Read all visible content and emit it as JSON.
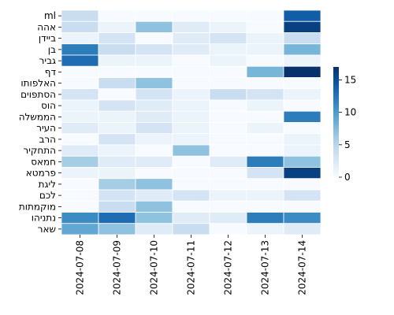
{
  "chart_data": {
    "type": "heatmap",
    "title": "",
    "xlabel": "",
    "ylabel": "",
    "x_categories": [
      "2024-07-08",
      "2024-07-09",
      "2024-07-10",
      "2024-07-11",
      "2024-07-12",
      "2024-07-13",
      "2024-07-14"
    ],
    "y_categories": [
      "ml",
      "אהה",
      "ביידן",
      "בן",
      "גביר",
      "דף",
      "האלפותו",
      "הסתפוים",
      "הוס",
      "הממשלה",
      "העיר",
      "הרב",
      "התחקיר",
      "חמאס",
      "פרמטא",
      "ליגת",
      "לכם",
      "מוקמתות",
      "נתניהו",
      "שאר"
    ],
    "values": [
      [
        4,
        0,
        0,
        0,
        0,
        0,
        14
      ],
      [
        4,
        1,
        7,
        2,
        1,
        0,
        16
      ],
      [
        1,
        3,
        0,
        2,
        3,
        1,
        4
      ],
      [
        12,
        4,
        3,
        2,
        1,
        1,
        8
      ],
      [
        13,
        1,
        1,
        0,
        1,
        0,
        1
      ],
      [
        0,
        0,
        0,
        0,
        0,
        8,
        17
      ],
      [
        0,
        4,
        7,
        0,
        0,
        0,
        0
      ],
      [
        3,
        0,
        3,
        1,
        4,
        3,
        1
      ],
      [
        1,
        3,
        2,
        1,
        0,
        1,
        0
      ],
      [
        1,
        1,
        2,
        1,
        0,
        0,
        12
      ],
      [
        2,
        1,
        3,
        1,
        0,
        1,
        0
      ],
      [
        0,
        3,
        1,
        1,
        0,
        0,
        1
      ],
      [
        2,
        1,
        0,
        7,
        0,
        0,
        1
      ],
      [
        6,
        2,
        2,
        0,
        2,
        12,
        7
      ],
      [
        1,
        1,
        0,
        0,
        0,
        3,
        16
      ],
      [
        0,
        6,
        7,
        0,
        0,
        0,
        0
      ],
      [
        0,
        3,
        2,
        3,
        1,
        1,
        3
      ],
      [
        0,
        4,
        7,
        0,
        0,
        0,
        0
      ],
      [
        11,
        13,
        7,
        2,
        2,
        12,
        11
      ],
      [
        9,
        7,
        2,
        4,
        0,
        1,
        2
      ]
    ],
    "colorbar": {
      "min": 0,
      "max": 17,
      "ticks": [
        0,
        5,
        10,
        15
      ],
      "colormap": "Blues"
    },
    "grid": true,
    "legend": "colorbar-right"
  }
}
